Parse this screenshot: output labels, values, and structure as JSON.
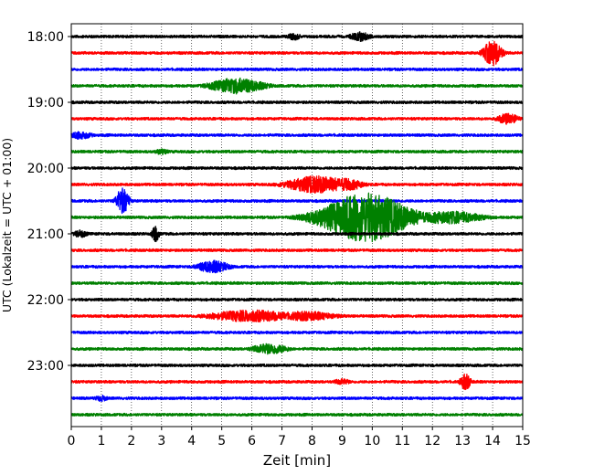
{
  "chart_data": {
    "type": "line",
    "title": "",
    "xlabel": "Zeit  [min]",
    "ylabel": "UTC (Lokalzeit = UTC + 01:00)",
    "xlim": [
      0,
      15
    ],
    "x_ticks": [
      "0",
      "1",
      "2",
      "3",
      "4",
      "5",
      "6",
      "7",
      "8",
      "9",
      "10",
      "11",
      "12",
      "13",
      "14",
      "15"
    ],
    "y_ticks": [
      "18:00",
      "19:00",
      "20:00",
      "21:00",
      "22:00",
      "23:00"
    ],
    "grid": "vertical dotted lines at each minute",
    "colors": [
      "#000000",
      "#ff0000",
      "#0000ff",
      "#008000"
    ],
    "trace_start_times": [
      "18:00",
      "18:15",
      "18:30",
      "18:45",
      "19:00",
      "19:15",
      "19:30",
      "19:45",
      "20:00",
      "20:15",
      "20:30",
      "20:45",
      "21:00",
      "21:15",
      "21:30",
      "21:45",
      "22:00",
      "22:15",
      "22:30",
      "22:45",
      "23:00",
      "23:15",
      "23:30",
      "23:45"
    ],
    "events": [
      {
        "trace": "18:00",
        "t_min": 7.4,
        "amp": 0.45,
        "dur": 0.4
      },
      {
        "trace": "18:00",
        "t_min": 9.6,
        "amp": 0.6,
        "dur": 0.6
      },
      {
        "trace": "18:15",
        "t_min": 14.0,
        "amp": 1.6,
        "dur": 0.5
      },
      {
        "trace": "18:45",
        "t_min": 5.5,
        "amp": 1.0,
        "dur": 1.5
      },
      {
        "trace": "19:15",
        "t_min": 14.5,
        "amp": 0.7,
        "dur": 0.6
      },
      {
        "trace": "19:30",
        "t_min": 0.3,
        "amp": 0.5,
        "dur": 0.7
      },
      {
        "trace": "19:45",
        "t_min": 3.0,
        "amp": 0.4,
        "dur": 0.4
      },
      {
        "trace": "20:15",
        "t_min": 8.2,
        "amp": 1.1,
        "dur": 1.7
      },
      {
        "trace": "20:15",
        "t_min": 9.1,
        "amp": 0.8,
        "dur": 1.0
      },
      {
        "trace": "20:30",
        "t_min": 1.7,
        "amp": 1.6,
        "dur": 0.35
      },
      {
        "trace": "20:45",
        "t_min": 9.8,
        "amp": 3.0,
        "dur": 2.4
      },
      {
        "trace": "20:45",
        "t_min": 12.5,
        "amp": 0.8,
        "dur": 2.0
      },
      {
        "trace": "21:00",
        "t_min": 2.8,
        "amp": 1.0,
        "dur": 0.2
      },
      {
        "trace": "21:00",
        "t_min": 0.3,
        "amp": 0.5,
        "dur": 0.4
      },
      {
        "trace": "21:30",
        "t_min": 4.7,
        "amp": 0.8,
        "dur": 0.9
      },
      {
        "trace": "22:15",
        "t_min": 6.0,
        "amp": 0.75,
        "dur": 2.5
      },
      {
        "trace": "22:15",
        "t_min": 7.8,
        "amp": 0.6,
        "dur": 1.8
      },
      {
        "trace": "22:45",
        "t_min": 6.6,
        "amp": 0.7,
        "dur": 1.0
      },
      {
        "trace": "23:15",
        "t_min": 13.1,
        "amp": 1.0,
        "dur": 0.3
      },
      {
        "trace": "23:15",
        "t_min": 9.0,
        "amp": 0.4,
        "dur": 0.5
      },
      {
        "trace": "23:30",
        "t_min": 1.0,
        "amp": 0.4,
        "dur": 0.4
      }
    ]
  }
}
